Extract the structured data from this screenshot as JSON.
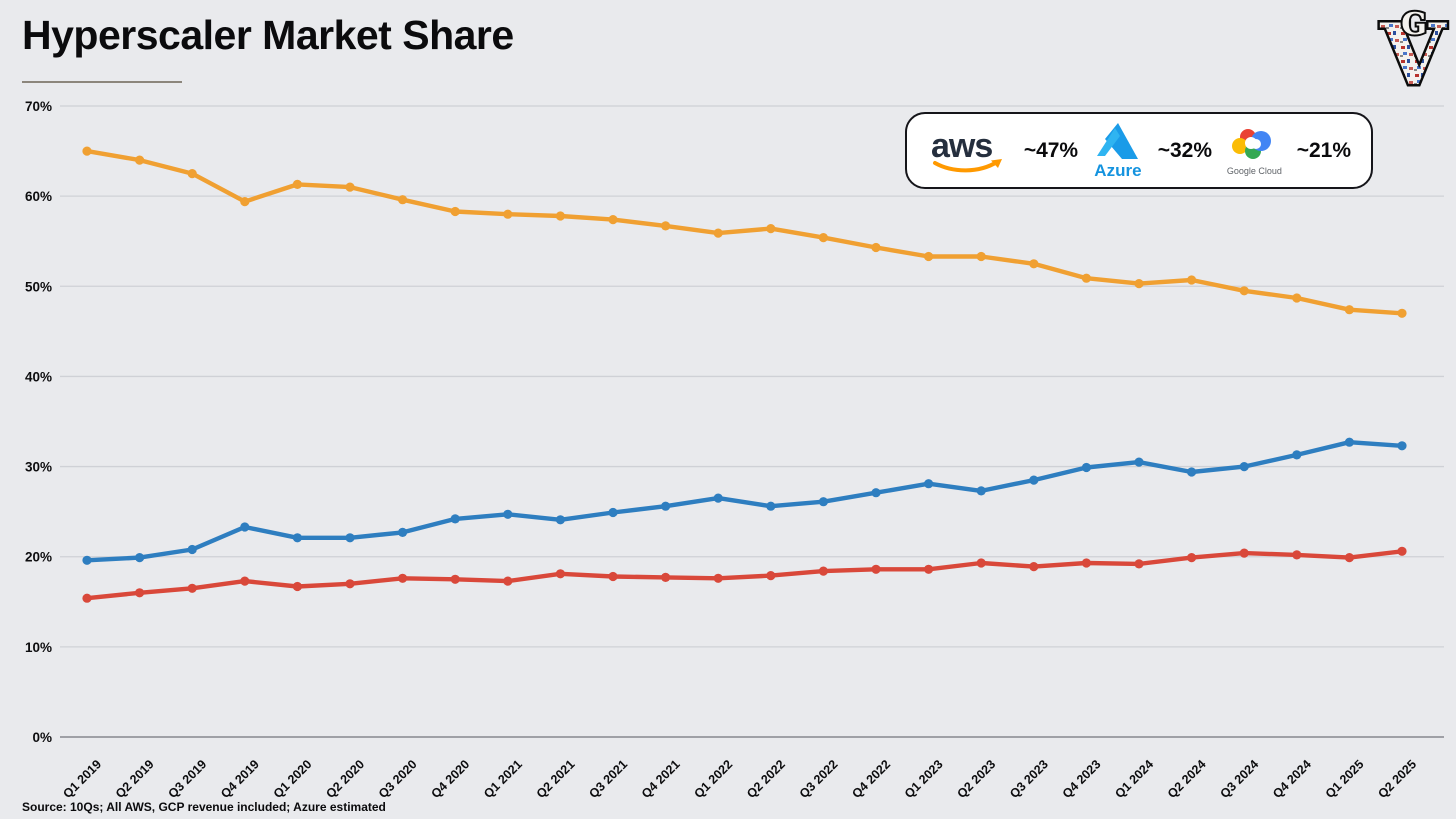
{
  "page": {
    "title": "Hyperscaler Market Share",
    "source_note": "Source: 10Qs; All AWS, GCP revenue included; Azure estimated",
    "logo_big": "V",
    "logo_small": "G"
  },
  "colors": {
    "background": "#E9EAED",
    "aws_line": "#F0A032",
    "azure_line": "#2E7EC0",
    "google_line": "#D9483A",
    "gridline": "#CFD1D6",
    "zero_line": "#9FA0A6",
    "amazon_orange": "#FF9900",
    "aws_text_navy": "#252F3E",
    "azure_blue": "#1493DF",
    "google_blue": "#4285F4",
    "google_red": "#EA4335",
    "google_yellow": "#FBBC05",
    "google_green": "#34A853"
  },
  "legend": {
    "items": [
      {
        "name": "AWS",
        "icon": "aws-logo-icon",
        "logo_text": "aws",
        "value_label": "~47%"
      },
      {
        "name": "Azure",
        "icon": "azure-logo-icon",
        "logo_text": "Azure",
        "value_label": "~32%"
      },
      {
        "name": "Google Cloud",
        "icon": "google-cloud-logo-icon",
        "logo_text": "Google Cloud",
        "value_label": "~21%"
      }
    ]
  },
  "chart_data": {
    "type": "line",
    "title": "Hyperscaler Market Share",
    "xlabel": "",
    "ylabel": "",
    "ylim": [
      0,
      70
    ],
    "grid": true,
    "legend_position": "top-right",
    "y_ticks": [
      "0%",
      "10%",
      "20%",
      "30%",
      "40%",
      "50%",
      "60%",
      "70%"
    ],
    "x": [
      "Q1 2019",
      "Q2 2019",
      "Q3 2019",
      "Q4 2019",
      "Q1 2020",
      "Q2 2020",
      "Q3 2020",
      "Q4 2020",
      "Q1 2021",
      "Q2 2021",
      "Q3 2021",
      "Q4 2021",
      "Q1 2022",
      "Q2 2022",
      "Q3 2022",
      "Q4 2022",
      "Q1 2023",
      "Q2 2023",
      "Q3 2023",
      "Q4 2023",
      "Q1 2024",
      "Q2 2024",
      "Q3 2024",
      "Q4 2024",
      "Q1 2025",
      "Q2 2025"
    ],
    "series": [
      {
        "name": "AWS",
        "color": "#F0A032",
        "values": [
          65.0,
          64.0,
          62.5,
          59.4,
          61.3,
          61.0,
          59.6,
          58.3,
          58.0,
          57.8,
          57.4,
          56.7,
          55.9,
          56.4,
          55.4,
          54.3,
          53.3,
          53.3,
          52.5,
          50.9,
          50.3,
          50.7,
          49.5,
          48.7,
          47.4,
          47.0
        ]
      },
      {
        "name": "Azure",
        "color": "#2E7EC0",
        "values": [
          19.6,
          19.9,
          20.8,
          23.3,
          22.1,
          22.1,
          22.7,
          24.2,
          24.7,
          24.1,
          24.9,
          25.6,
          26.5,
          25.6,
          26.1,
          27.1,
          28.1,
          27.3,
          28.5,
          29.9,
          30.5,
          29.4,
          30.0,
          31.3,
          32.7,
          32.3
        ]
      },
      {
        "name": "Google Cloud",
        "color": "#D9483A",
        "values": [
          15.4,
          16.0,
          16.5,
          17.3,
          16.7,
          17.0,
          17.6,
          17.5,
          17.3,
          18.1,
          17.8,
          17.7,
          17.6,
          17.9,
          18.4,
          18.6,
          18.6,
          19.3,
          18.9,
          19.3,
          19.2,
          19.9,
          20.4,
          20.2,
          19.9,
          20.6
        ]
      }
    ]
  }
}
